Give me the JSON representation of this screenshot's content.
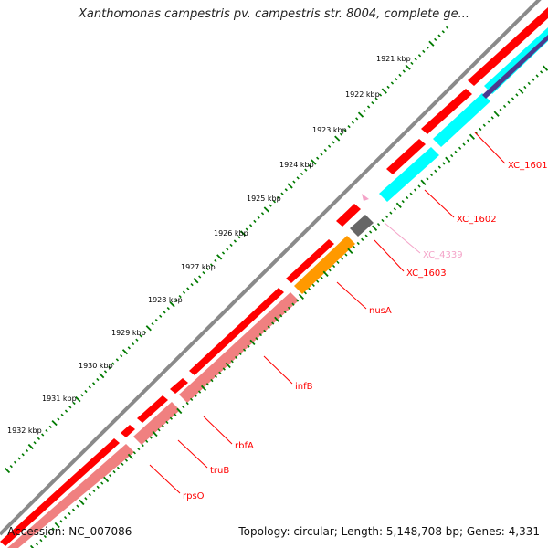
{
  "title": "Xanthomonas campestris pv. campestris str. 8004, complete ge...",
  "footer": {
    "accession": "Accession: NC_007086",
    "summary": "Topology: circular; Length: 5,148,708 bp; Genes: 4,331"
  },
  "colors": {
    "backbone": "#8a8a8a",
    "red": "#ff0000",
    "pink": "#f08080",
    "cyan": "#00ffff",
    "orange": "#ff9900",
    "gray": "#666666",
    "navy": "#4b3a8f",
    "light_pink": "#f4a3c8",
    "tick_green": "#007a00",
    "label_red": "#cc0000"
  },
  "ticks": [
    {
      "label": "1921 kbp"
    },
    {
      "label": "1922 kbp"
    },
    {
      "label": "1923 kbp"
    },
    {
      "label": "1924 kbp"
    },
    {
      "label": "1925 kbp"
    },
    {
      "label": "1926 kbp"
    },
    {
      "label": "1927 kbp"
    },
    {
      "label": "1928 kbp"
    },
    {
      "label": "1929 kbp"
    },
    {
      "label": "1930 kbp"
    },
    {
      "label": "1931 kbp"
    },
    {
      "label": "1932 kbp"
    }
  ],
  "genes": [
    {
      "name": "XC_1601",
      "color": "red"
    },
    {
      "name": "XC_1602",
      "color": "red"
    },
    {
      "name": "XC_4339",
      "color": "light_pink"
    },
    {
      "name": "XC_1603",
      "color": "red"
    },
    {
      "name": "nusA",
      "color": "red"
    },
    {
      "name": "infB",
      "color": "red"
    },
    {
      "name": "rbfA",
      "color": "red"
    },
    {
      "name": "truB",
      "color": "red"
    },
    {
      "name": "rpsO",
      "color": "red"
    }
  ]
}
